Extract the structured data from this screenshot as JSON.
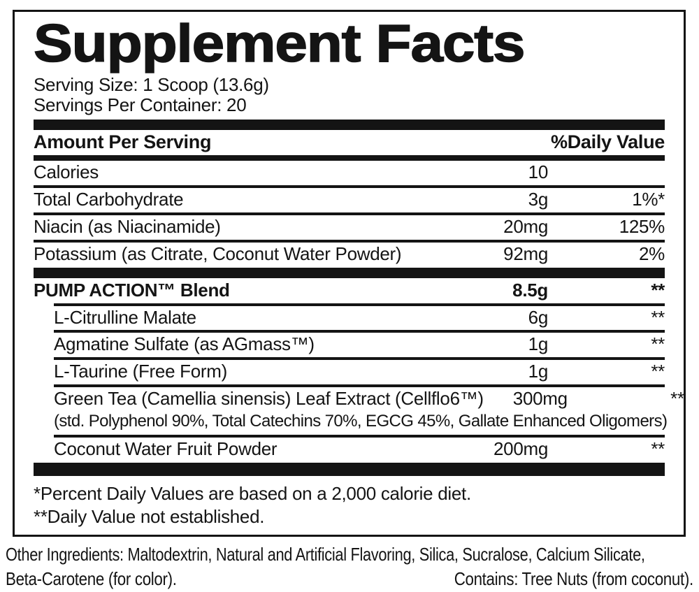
{
  "colors": {
    "ink": "#141414",
    "paper": "#ffffff"
  },
  "label": {
    "title": "Supplement Facts",
    "serving_size": "Serving Size: 1 Scoop (13.6g)",
    "servings_per_container": "Servings Per Container: 20",
    "header": {
      "amount_per_serving": "Amount Per Serving",
      "daily_value": "%Daily Value"
    },
    "rows": [
      {
        "name": "Calories",
        "amount": "10",
        "dv": "",
        "bold": false,
        "indent": false,
        "sep": "thin"
      },
      {
        "name": "Total Carbohydrate",
        "amount": "3g",
        "dv": "1%*",
        "bold": false,
        "indent": false,
        "sep": "thin"
      },
      {
        "name": "Niacin (as Niacinamide)",
        "amount": "20mg",
        "dv": "125%",
        "bold": false,
        "indent": false,
        "sep": "thin"
      },
      {
        "name": "Potassium (as Citrate, Coconut Water Powder)",
        "amount": "92mg",
        "dv": "2%",
        "bold": false,
        "indent": false,
        "sep": "thick"
      },
      {
        "name": "PUMP ACTION™ Blend",
        "amount": "8.5g",
        "dv": "**",
        "bold": true,
        "indent": false,
        "sep": "thin-indent"
      },
      {
        "name": "L-Citrulline Malate",
        "amount": "6g",
        "dv": "**",
        "bold": false,
        "indent": true,
        "sep": "thin-indent"
      },
      {
        "name": "Agmatine Sulfate (as AGmass™)",
        "amount": "1g",
        "dv": "**",
        "bold": false,
        "indent": true,
        "sep": "thin-indent"
      },
      {
        "name": "L-Taurine (Free Form)",
        "amount": "1g",
        "dv": "**",
        "bold": false,
        "indent": true,
        "sep": "thin-indent"
      },
      {
        "name": "Green Tea (Camellia sinensis) Leaf Extract (Cellflo6™)",
        "amount": "300mg",
        "dv": "**",
        "bold": false,
        "indent": true,
        "sub": "(std. Polyphenol 90%, Total Catechins 70%, EGCG 45%, Gallate Enhanced Oligomers)",
        "sep": "thin-indent"
      },
      {
        "name": "Coconut Water Fruit Powder",
        "amount": "200mg",
        "dv": "**",
        "bold": false,
        "indent": true,
        "sep": "thick-big"
      }
    ],
    "footnotes": [
      "*Percent Daily Values are based on a 2,000 calorie diet.",
      "**Daily Value not established."
    ]
  },
  "footer": {
    "other_ingredients_line1": "Other Ingredients: Maltodextrin, Natural and Artificial Flavoring, Silica, Sucralose, Calcium Silicate,",
    "other_ingredients_line2": "Beta-Carotene (for color).",
    "contains": "Contains: Tree Nuts (from coconut)."
  }
}
